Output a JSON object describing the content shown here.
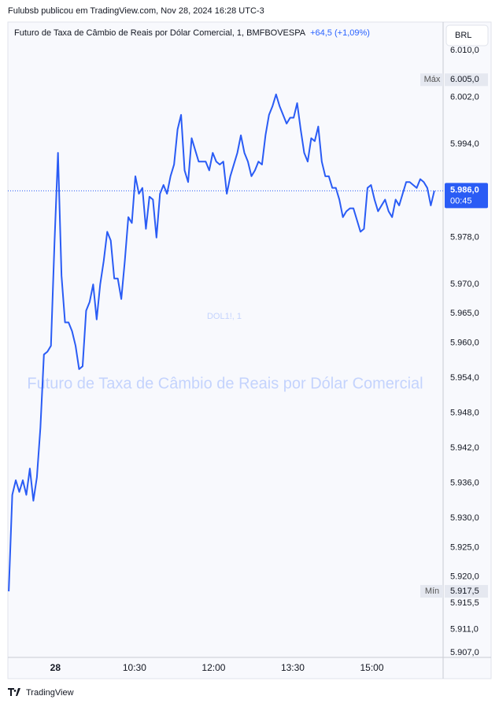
{
  "page": {
    "header": "Fulubsb publicou em TradingView.com, Nov 28, 2024 16:28 UTC-3",
    "currency": "BRL",
    "footer": "TradingView"
  },
  "chart_data": {
    "type": "line",
    "title": "Futuro de Taxa de Câmbio de Reais por Dólar Comercial, 1, BMFBOVESPA",
    "subtitle": "+64,5 (+1,09%)",
    "watermark": "DOL1!, 1",
    "watermark_subtitle": "Futuro de Taxa de Câmbio de Reais por Dólar Comercial",
    "color": "#2a5cf5",
    "grid": false,
    "xlim": [
      "08:06",
      "16:21"
    ],
    "xticks": [
      {
        "value": "09:00",
        "label": "28"
      },
      "10:30",
      "12:00",
      "13:30",
      "15:00"
    ],
    "ylim": [
      5906.2,
      6014.6
    ],
    "yticks": [
      {
        "value": 6010,
        "label": "6.010,0"
      },
      {
        "value": 6002,
        "label": "6.002,0"
      },
      {
        "value": 5994,
        "label": "5.994,0"
      },
      {
        "value": 5978,
        "label": "5.978,0"
      },
      {
        "value": 5970,
        "label": "5.970,0"
      },
      {
        "value": 5965,
        "label": "5.965,0"
      },
      {
        "value": 5960,
        "label": "5.960,0"
      },
      {
        "value": 5954,
        "label": "5.954,0"
      },
      {
        "value": 5948,
        "label": "5.948,0"
      },
      {
        "value": 5942,
        "label": "5.942,0"
      },
      {
        "value": 5936,
        "label": "5.936,0"
      },
      {
        "value": 5930,
        "label": "5.930,0"
      },
      {
        "value": 5925,
        "label": "5.925,0"
      },
      {
        "value": 5920,
        "label": "5.920,0"
      },
      {
        "value": 5915.5,
        "label": "5.915,5"
      },
      {
        "value": 5911,
        "label": "5.911,0"
      },
      {
        "value": 5907,
        "label": "5.907,0"
      }
    ],
    "max_marker": {
      "text": "Máx",
      "price": {
        "value": 6005,
        "label": "6.005,0"
      }
    },
    "min_marker": {
      "text": "Mín",
      "price": {
        "value": 5917.5,
        "label": "5.917,5"
      }
    },
    "last_price": {
      "value": 5986,
      "label": "5.986,0"
    },
    "countdown": "00:45",
    "x": [
      "08:07",
      "08:11",
      "08:15",
      "08:19",
      "08:23",
      "08:27",
      "08:31",
      "08:35",
      "08:39",
      "08:43",
      "08:47",
      "08:51",
      "08:55",
      "08:59",
      "09:03",
      "09:07",
      "09:11",
      "09:15",
      "09:19",
      "09:23",
      "09:27",
      "09:31",
      "09:35",
      "09:39",
      "09:43",
      "09:47",
      "09:51",
      "09:55",
      "09:59",
      "10:03",
      "10:07",
      "10:11",
      "10:15",
      "10:19",
      "10:23",
      "10:27",
      "10:31",
      "10:35",
      "10:39",
      "10:43",
      "10:47",
      "10:51",
      "10:55",
      "10:59",
      "11:03",
      "11:07",
      "11:11",
      "11:15",
      "11:19",
      "11:23",
      "11:27",
      "11:31",
      "11:35",
      "11:39",
      "11:43",
      "11:47",
      "11:51",
      "11:55",
      "11:59",
      "12:03",
      "12:07",
      "12:11",
      "12:15",
      "12:19",
      "12:23",
      "12:27",
      "12:31",
      "12:35",
      "12:39",
      "12:43",
      "12:47",
      "12:51",
      "12:55",
      "12:59",
      "13:03",
      "13:07",
      "13:11",
      "13:15",
      "13:19",
      "13:23",
      "13:27",
      "13:31",
      "13:35",
      "13:39",
      "13:43",
      "13:47",
      "13:51",
      "13:55",
      "13:59",
      "14:03",
      "14:07",
      "14:11",
      "14:15",
      "14:19",
      "14:23",
      "14:27",
      "14:31",
      "14:35",
      "14:39",
      "14:43",
      "14:47",
      "14:51",
      "14:55",
      "14:59",
      "15:03",
      "15:07",
      "15:11",
      "15:15",
      "15:19",
      "15:23",
      "15:27",
      "15:31",
      "15:35",
      "15:39",
      "15:43",
      "15:47",
      "15:51",
      "15:55",
      "15:59",
      "16:03",
      "16:07",
      "16:11"
    ],
    "values": [
      5917.5,
      5934,
      5936.5,
      5934.5,
      5936.5,
      5934,
      5938.5,
      5933,
      5937,
      5945.5,
      5958,
      5958.5,
      5959.5,
      5977,
      5992.5,
      5971.5,
      5963.5,
      5963.5,
      5962,
      5959.5,
      5955.5,
      5956,
      5965.5,
      5967,
      5970,
      5964,
      5970,
      5974,
      5979,
      5977.5,
      5971,
      5971,
      5967.5,
      5974,
      5981.5,
      5980.5,
      5988.5,
      5985.5,
      5986.5,
      5979.5,
      5985,
      5984.5,
      5978,
      5985.5,
      5987,
      5985.5,
      5988.5,
      5990.5,
      5996.5,
      5999,
      5989.5,
      5987.5,
      5995,
      5993,
      5991,
      5991,
      5991,
      5989.5,
      5992.5,
      5991,
      5990.5,
      5991,
      5985.5,
      5988.5,
      5990.5,
      5992.5,
      5995.5,
      5992.5,
      5991,
      5988.5,
      5989.5,
      5991,
      5990.5,
      5995.5,
      5999,
      6000.5,
      6002.5,
      6000.5,
      5999,
      5997.5,
      5998.5,
      5998.5,
      6001,
      5996.5,
      5992.5,
      5991,
      5995,
      5994.5,
      5997,
      5991,
      5988.5,
      5988.5,
      5986.5,
      5986.5,
      5984.5,
      5981.5,
      5982.5,
      5983,
      5983,
      5981,
      5979,
      5979.5,
      5986.5,
      5987,
      5984.5,
      5982.5,
      5983.5,
      5984.5,
      5982.5,
      5981.5,
      5984.5,
      5983.5,
      5985.5,
      5987.5,
      5987.5,
      5987,
      5986.5,
      5988,
      5987.5,
      5986.5,
      5983.5,
      5986
    ]
  }
}
